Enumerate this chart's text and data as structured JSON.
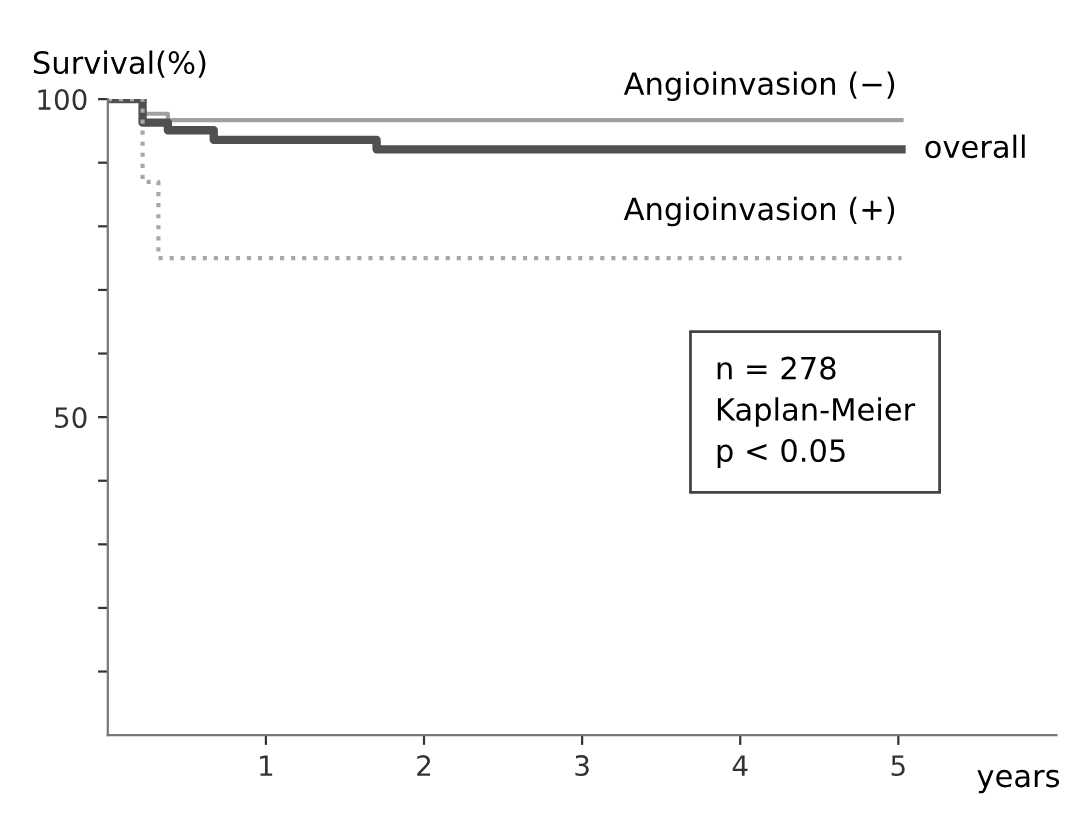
{
  "chart_data": {
    "type": "step",
    "ylabel": "Survival(%)",
    "xlabel": "years",
    "xlim": [
      0,
      6
    ],
    "ylim": [
      0,
      100
    ],
    "xticks": [
      1,
      2,
      3,
      4,
      5
    ],
    "yticks": [
      {
        "value": 10,
        "label": null
      },
      {
        "value": 20,
        "label": null
      },
      {
        "value": 30,
        "label": null
      },
      {
        "value": 40,
        "label": null
      },
      50,
      {
        "value": 60,
        "label": null
      },
      {
        "value": 70,
        "label": null
      },
      {
        "value": 80,
        "label": null
      },
      {
        "value": 90,
        "label": null
      },
      100
    ],
    "grid": false,
    "legend": false,
    "series": [
      {
        "name": "Angioinvasion (−)",
        "color": "#a0a0a0",
        "line_style": "solid",
        "x": [
          0,
          0.22,
          0.38,
          5.02
        ],
        "values": [
          100,
          97.7,
          96.7,
          96.7
        ]
      },
      {
        "name": "overall",
        "color": "#505050",
        "line_style": "solid",
        "x": [
          0,
          0.22,
          0.38,
          0.67,
          1.7,
          5.02
        ],
        "values": [
          100,
          96.3,
          95.1,
          93.6,
          92.1,
          92.1
        ]
      },
      {
        "name": "Angioinvasion (+)",
        "color": "#a8a8a8",
        "line_style": "dotted",
        "x": [
          0,
          0.22,
          0.32,
          5.02
        ],
        "values": [
          100,
          87,
          75,
          75
        ]
      }
    ],
    "annotations": [
      "n = 278\nKaplan-Meier\np < 0.05"
    ]
  }
}
